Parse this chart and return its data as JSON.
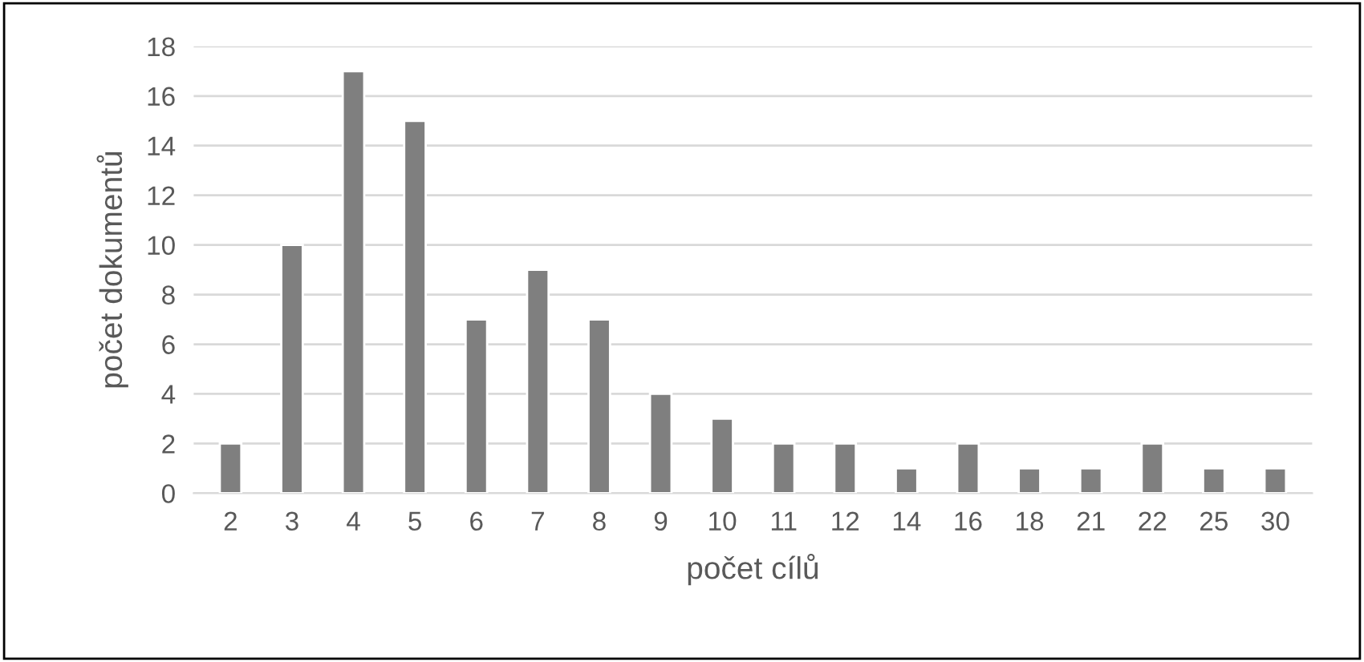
{
  "chart_data": {
    "type": "bar",
    "xlabel": "počet cílů",
    "ylabel": "počet dokumentů",
    "categories": [
      "2",
      "3",
      "4",
      "5",
      "6",
      "7",
      "8",
      "9",
      "10",
      "11",
      "12",
      "14",
      "16",
      "18",
      "21",
      "22",
      "25",
      "30"
    ],
    "values": [
      2,
      10,
      17,
      15,
      7,
      9,
      7,
      4,
      3,
      2,
      2,
      1,
      2,
      1,
      1,
      2,
      1,
      1
    ],
    "color": "#7f7f7f",
    "ylim": [
      0,
      18
    ],
    "yticks": [
      0,
      2,
      4,
      6,
      8,
      10,
      12,
      14,
      16,
      18
    ],
    "grid": "y",
    "legend": false
  }
}
